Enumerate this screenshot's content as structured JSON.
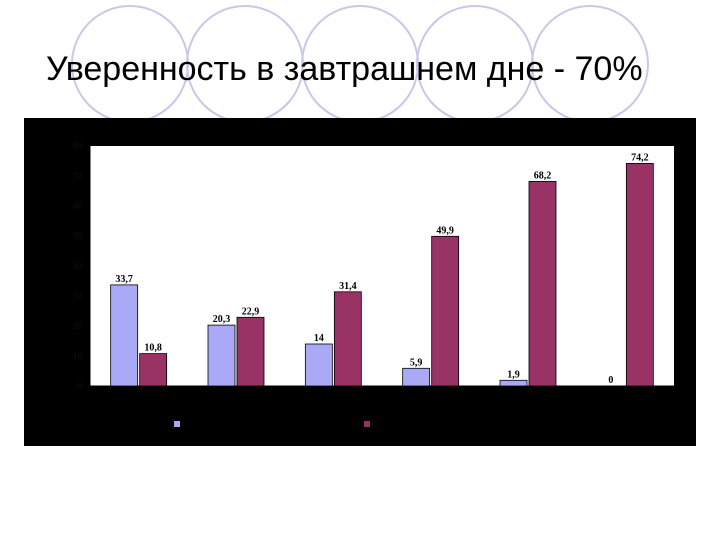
{
  "slide": {
    "title": "Уверенность в завтрашнем дне - 70%"
  },
  "chart_data": {
    "type": "bar",
    "categories": [
      "",
      "",
      "",
      "",
      "",
      ""
    ],
    "series": [
      {
        "values": [
          33.7,
          20.3,
          14,
          5.9,
          1.9,
          0
        ]
      },
      {
        "values": [
          10.8,
          22.9,
          31.4,
          49.9,
          68.2,
          74.2
        ]
      }
    ],
    "value_labels": [
      [
        "33,7",
        "20,3",
        "14",
        "5,9",
        "1,9",
        "0"
      ],
      [
        "10,8",
        "22,9",
        "31,4",
        "49,9",
        "68,2",
        "74,2"
      ]
    ],
    "yticks": [
      0,
      10,
      20,
      30,
      40,
      50,
      60,
      70,
      80
    ],
    "ylim": [
      0,
      80
    ],
    "grid": false,
    "legend": "bottom",
    "colors": {
      "series1": "#a9a9f5",
      "series2": "#993366",
      "panel": "#000000",
      "plot": "#ffffff"
    }
  }
}
